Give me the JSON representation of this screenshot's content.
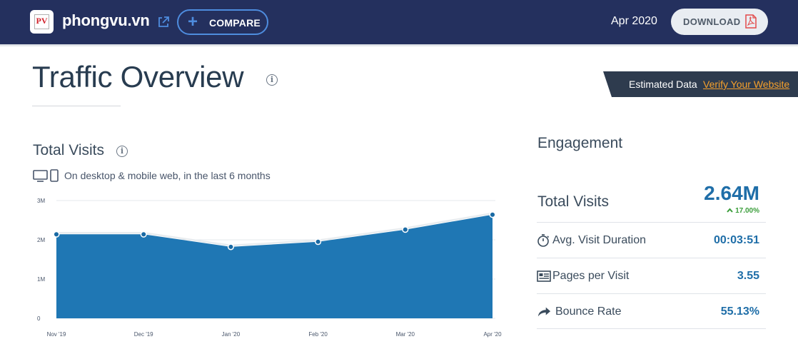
{
  "header": {
    "site": "phongvu.vn",
    "compare_label": "COMPARE",
    "period": "Apr 2020",
    "download_label": "DOWNLOAD",
    "logo_text": "PV",
    "colors": {
      "bar": "#24305e",
      "accent": "#4e8cde",
      "pdf": "#e24a4a"
    },
    "icons": [
      "external-link-icon",
      "plus-icon",
      "pdf-icon"
    ]
  },
  "title": {
    "text": "Traffic Overview"
  },
  "ribbon": {
    "text": "Estimated Data",
    "link": "Verify Your Website",
    "colors": {
      "bg": "#2e3b4e",
      "link": "#f6a02b"
    }
  },
  "total_visits": {
    "title": "Total Visits",
    "subtitle": "On desktop & mobile web, in the last 6 months"
  },
  "chart_data": {
    "type": "area",
    "categories": [
      "Nov '19",
      "Dec '19",
      "Jan '20",
      "Feb '20",
      "Mar '20",
      "Apr '20"
    ],
    "values": [
      2.14,
      2.14,
      1.82,
      1.95,
      2.26,
      2.64
    ],
    "ylim": [
      0,
      3
    ],
    "yticks": [
      0,
      1,
      2,
      3
    ],
    "ytick_labels": [
      "0",
      "1M",
      "2M",
      "3M"
    ],
    "grid": true,
    "color": "#1f77b4"
  },
  "engagement": {
    "title": "Engagement",
    "total_visits_label": "Total Visits",
    "total_visits_value": "2.64M",
    "change": "17.00%",
    "change_color": "#3a9d3a",
    "rows": [
      {
        "label": "Avg. Visit Duration",
        "value": "00:03:51",
        "icon": "timer-icon"
      },
      {
        "label": "Pages per Visit",
        "value": "3.55",
        "icon": "pages-icon"
      },
      {
        "label": "Bounce Rate",
        "value": "55.13%",
        "icon": "bounce-arrow-icon"
      }
    ]
  }
}
